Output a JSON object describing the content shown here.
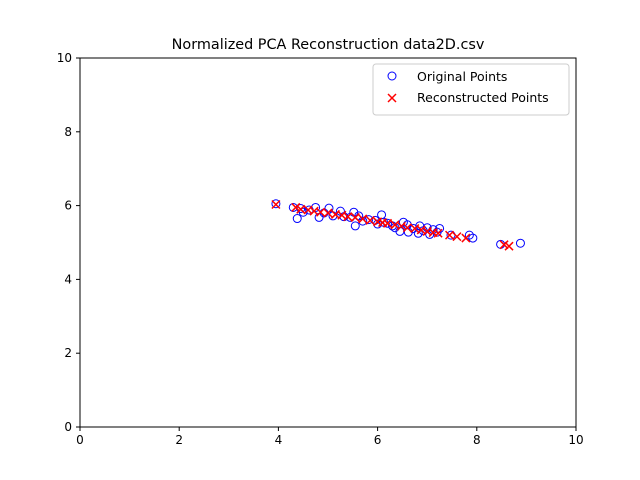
{
  "chart_data": {
    "type": "scatter",
    "title": "Normalized PCA Reconstruction data2D.csv",
    "xlabel": "",
    "ylabel": "",
    "xlim": [
      0,
      10
    ],
    "ylim": [
      0,
      10
    ],
    "xticks": [
      "0",
      "2",
      "4",
      "6",
      "8",
      "10"
    ],
    "yticks": [
      "0",
      "2",
      "4",
      "6",
      "8",
      "10"
    ],
    "grid": false,
    "legend_position": "top-right",
    "series": [
      {
        "name": "Original Points",
        "marker": "circle-open",
        "color": "#0000ff",
        "points": [
          [
            3.95,
            6.05
          ],
          [
            4.3,
            5.95
          ],
          [
            4.38,
            5.65
          ],
          [
            4.45,
            5.92
          ],
          [
            4.5,
            5.82
          ],
          [
            4.62,
            5.88
          ],
          [
            4.75,
            5.95
          ],
          [
            4.82,
            5.68
          ],
          [
            4.92,
            5.8
          ],
          [
            5.02,
            5.93
          ],
          [
            5.1,
            5.72
          ],
          [
            5.25,
            5.85
          ],
          [
            5.32,
            5.7
          ],
          [
            5.45,
            5.68
          ],
          [
            5.52,
            5.82
          ],
          [
            5.55,
            5.45
          ],
          [
            5.62,
            5.72
          ],
          [
            5.7,
            5.58
          ],
          [
            5.82,
            5.62
          ],
          [
            5.95,
            5.6
          ],
          [
            6.0,
            5.5
          ],
          [
            6.08,
            5.75
          ],
          [
            6.12,
            5.55
          ],
          [
            6.2,
            5.52
          ],
          [
            6.3,
            5.45
          ],
          [
            6.35,
            5.4
          ],
          [
            6.45,
            5.3
          ],
          [
            6.52,
            5.55
          ],
          [
            6.6,
            5.48
          ],
          [
            6.62,
            5.28
          ],
          [
            6.72,
            5.38
          ],
          [
            6.82,
            5.25
          ],
          [
            6.85,
            5.45
          ],
          [
            6.92,
            5.32
          ],
          [
            7.0,
            5.4
          ],
          [
            7.05,
            5.22
          ],
          [
            7.12,
            5.35
          ],
          [
            7.2,
            5.28
          ],
          [
            7.25,
            5.38
          ],
          [
            7.48,
            5.2
          ],
          [
            7.85,
            5.2
          ],
          [
            7.92,
            5.12
          ],
          [
            8.48,
            4.95
          ],
          [
            8.88,
            4.98
          ]
        ]
      },
      {
        "name": "Reconstructed Points",
        "marker": "x",
        "color": "#ff0000",
        "points": [
          [
            3.95,
            6.03
          ],
          [
            4.35,
            5.95
          ],
          [
            4.45,
            5.9
          ],
          [
            4.6,
            5.88
          ],
          [
            4.72,
            5.85
          ],
          [
            4.85,
            5.82
          ],
          [
            5.0,
            5.8
          ],
          [
            5.15,
            5.76
          ],
          [
            5.28,
            5.74
          ],
          [
            5.4,
            5.7
          ],
          [
            5.55,
            5.68
          ],
          [
            5.7,
            5.64
          ],
          [
            5.85,
            5.6
          ],
          [
            6.0,
            5.56
          ],
          [
            6.1,
            5.54
          ],
          [
            6.2,
            5.52
          ],
          [
            6.35,
            5.48
          ],
          [
            6.48,
            5.44
          ],
          [
            6.6,
            5.4
          ],
          [
            6.75,
            5.38
          ],
          [
            6.88,
            5.34
          ],
          [
            7.0,
            5.3
          ],
          [
            7.12,
            5.27
          ],
          [
            7.22,
            5.25
          ],
          [
            7.45,
            5.2
          ],
          [
            7.6,
            5.16
          ],
          [
            7.78,
            5.12
          ],
          [
            8.55,
            4.94
          ],
          [
            8.65,
            4.9
          ]
        ]
      }
    ]
  }
}
